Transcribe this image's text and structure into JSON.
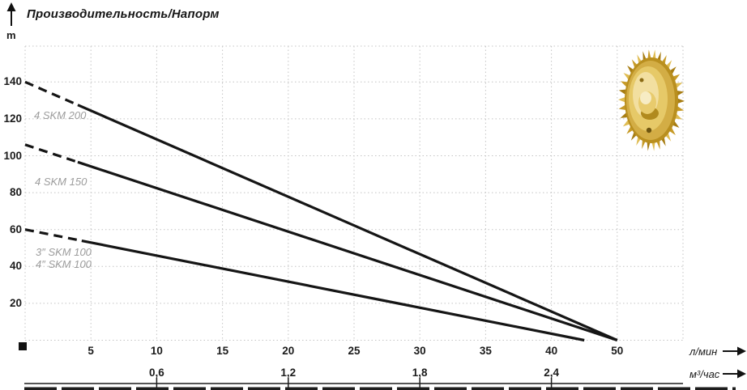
{
  "header": {
    "title": "Производительность/Напорм",
    "y_unit": "m"
  },
  "axes": {
    "y": {
      "unit": "m",
      "ticks": [
        20,
        40,
        60,
        80,
        100,
        120,
        140
      ]
    },
    "x_primary": {
      "unit": "л/мин",
      "ticks": [
        5,
        10,
        15,
        20,
        25,
        30,
        35,
        40,
        50
      ]
    },
    "x_secondary": {
      "unit": "м³/час",
      "ticks": [
        {
          "label": "0,6",
          "lmin": 10
        },
        {
          "label": "1,2",
          "lmin": 20
        },
        {
          "label": "1,8",
          "lmin": 30
        },
        {
          "label": "2,4",
          "lmin": 40
        }
      ]
    }
  },
  "chart_data": {
    "type": "line",
    "title": "Производительность/Напорм",
    "ylabel": "m",
    "xlabel_primary": "л/мин",
    "xlabel_secondary": "м³/час",
    "ylim": [
      0,
      160
    ],
    "x_ticks_lmin": [
      5,
      10,
      15,
      20,
      25,
      30,
      35,
      40,
      50
    ],
    "x_ticks_m3h_labels": [
      "0,6",
      "1,2",
      "1,8",
      "2,4"
    ],
    "grid": true,
    "line_color": "#151515",
    "grid_color": "#c4c4c4",
    "series": [
      {
        "name": "4 SKM 200",
        "label_lines": [
          "4 SKM 200"
        ],
        "points_lmin_head_m": [
          [
            0,
            140
          ],
          [
            50,
            0
          ]
        ],
        "dashed_below_lmin": 4
      },
      {
        "name": "4 SKM 150",
        "label_lines": [
          "4 SKM 150"
        ],
        "points_lmin_head_m": [
          [
            0,
            106
          ],
          [
            50,
            0
          ]
        ],
        "dashed_below_lmin": 4
      },
      {
        "name": "SKM 100",
        "label_lines": [
          "3″ SKM 100",
          "4″ SKM 100"
        ],
        "points_lmin_head_m": [
          [
            0,
            60
          ],
          [
            45,
            0
          ]
        ],
        "dashed_below_lmin": 4.3
      }
    ]
  },
  "decor": {
    "impeller_icon": "brass-pump-impeller",
    "impeller_colors": [
      "#a87e14",
      "#c79b28",
      "#dfbc52",
      "#f2dfa0"
    ],
    "label_gray": "#9c9c9c"
  }
}
